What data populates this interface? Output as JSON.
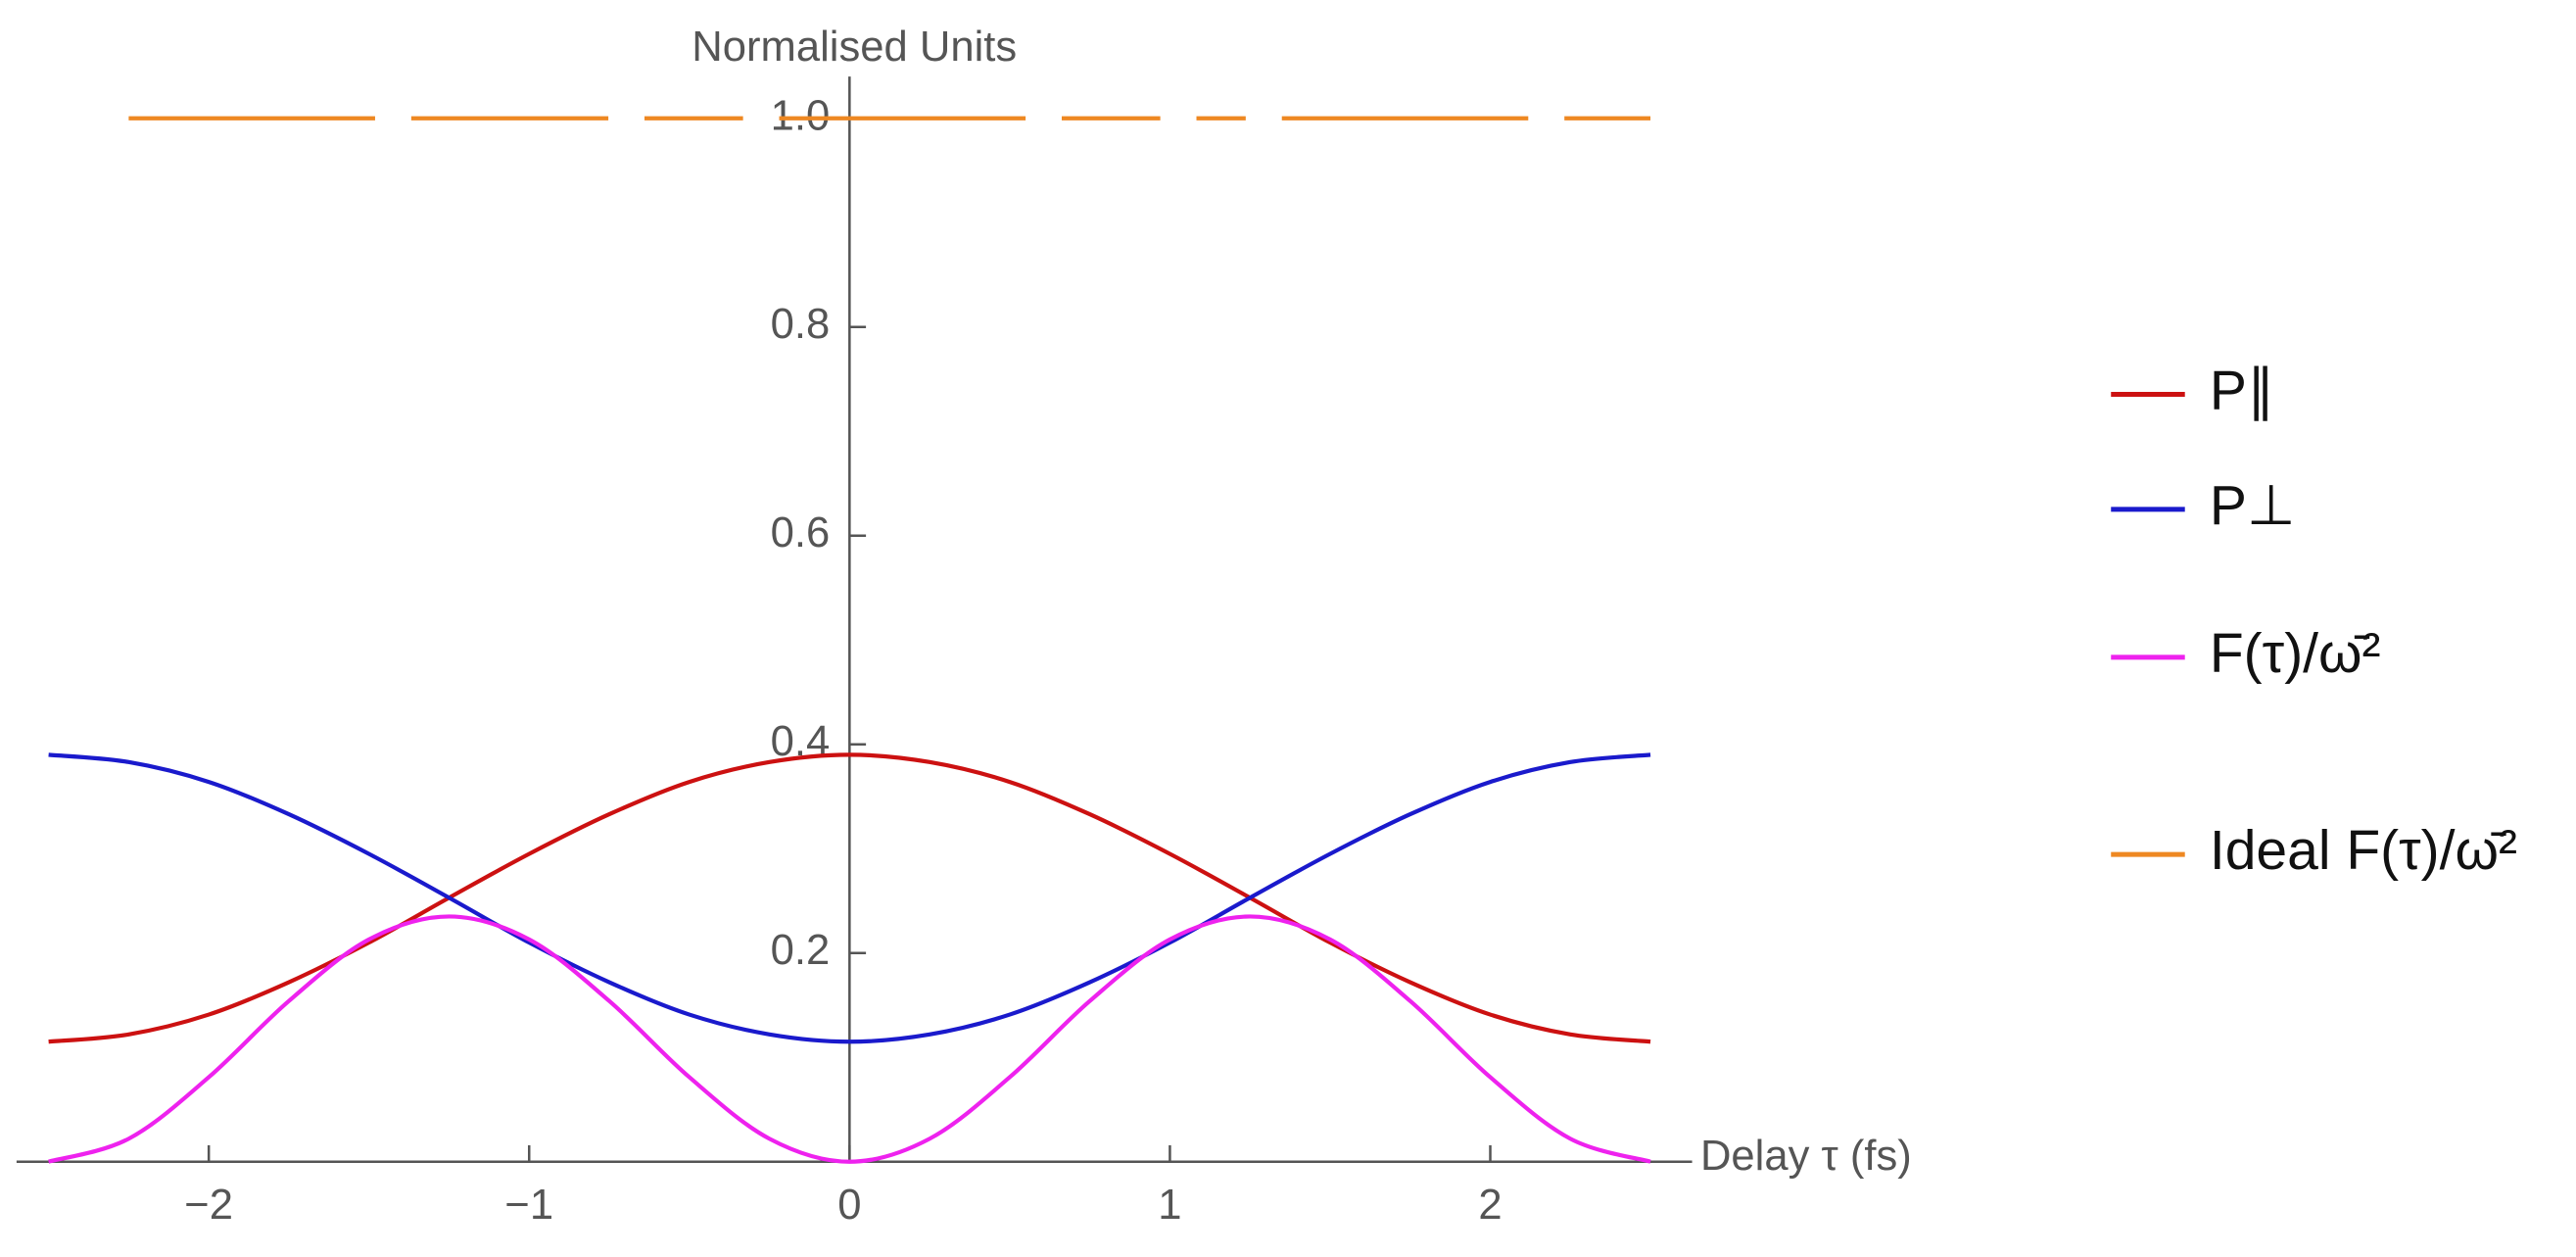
{
  "chart_data": {
    "type": "line",
    "ylabel": "Normalised Units",
    "xlabel": "Delay τ (fs)",
    "x": [
      -2.5,
      -2.25,
      -2,
      -1.75,
      -1.5,
      -1.25,
      -1,
      -0.75,
      -0.5,
      -0.25,
      0,
      0.25,
      0.5,
      0.75,
      1,
      1.25,
      1.5,
      1.75,
      2,
      2.25,
      2.5
    ],
    "series": [
      {
        "name": "P∥",
        "color": "#cc1111",
        "values": [
          0.115,
          0.122,
          0.141,
          0.172,
          0.21,
          0.253,
          0.295,
          0.333,
          0.364,
          0.383,
          0.39,
          0.383,
          0.364,
          0.333,
          0.295,
          0.253,
          0.21,
          0.172,
          0.141,
          0.122,
          0.115
        ]
      },
      {
        "name": "P⊥",
        "color": "#1a1acc",
        "values": [
          0.39,
          0.383,
          0.364,
          0.333,
          0.295,
          0.253,
          0.21,
          0.172,
          0.141,
          0.122,
          0.115,
          0.122,
          0.141,
          0.172,
          0.21,
          0.253,
          0.295,
          0.333,
          0.364,
          0.383,
          0.39
        ]
      },
      {
        "name": "F(τ)/ω̄²",
        "color": "#ee22ee",
        "values": [
          0,
          0.022,
          0.081,
          0.154,
          0.213,
          0.235,
          0.213,
          0.154,
          0.081,
          0.022,
          0,
          0.022,
          0.081,
          0.154,
          0.213,
          0.235,
          0.213,
          0.154,
          0.081,
          0.022,
          0
        ]
      },
      {
        "name": "Ideal F(τ)/ω̄²",
        "color": "#ee8822",
        "dashed": true,
        "values": [
          null,
          1,
          1,
          1,
          1,
          1,
          1,
          1,
          1,
          1,
          1,
          1,
          1,
          1,
          1,
          1,
          1,
          1,
          1,
          1,
          1
        ]
      }
    ],
    "xlim": [
      -2.6,
      2.63
    ],
    "ylim": [
      0,
      1.04
    ],
    "xticks": [
      {
        "value": -2,
        "label": "−2"
      },
      {
        "value": -1,
        "label": "−1"
      },
      {
        "value": 0,
        "label": "0"
      },
      {
        "value": 1,
        "label": "1"
      },
      {
        "value": 2,
        "label": "2"
      }
    ],
    "yticks": [
      0.2,
      0.4,
      0.6,
      0.8,
      {
        "value": 1,
        "label": "1.0"
      }
    ],
    "legend": "right"
  }
}
